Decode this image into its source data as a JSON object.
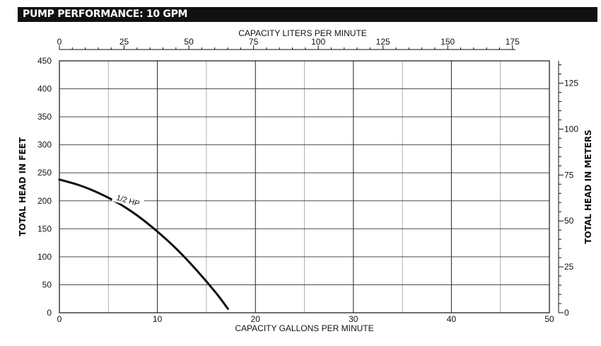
{
  "title": "PUMP PERFORMANCE: 10 GPM",
  "chart_data": {
    "type": "line",
    "xlabel": "CAPACITY GALLONS PER MINUTE",
    "ylabel": "TOTAL HEAD IN FEET",
    "x2label": "CAPACITY LITERS PER MINUTE",
    "y2label": "TOTAL HEAD IN METERS",
    "xlim": [
      0,
      50
    ],
    "ylim": [
      0,
      450
    ],
    "x2lim": [
      0,
      189.27
    ],
    "y2lim": [
      0,
      137.16
    ],
    "x_ticks": [
      "0",
      "10",
      "20",
      "30",
      "40",
      "50"
    ],
    "y_ticks": [
      "0",
      "50",
      "100",
      "150",
      "200",
      "250",
      "300",
      "350",
      "400",
      "450"
    ],
    "x2_ticks": [
      "0",
      "25",
      "50",
      "75",
      "100",
      "125",
      "150",
      "175"
    ],
    "y2_ticks": [
      "0",
      "25",
      "50",
      "75",
      "100",
      "125"
    ],
    "grid": true,
    "series": [
      {
        "name": "1/2 HP",
        "x": [
          0,
          2,
          4,
          6,
          8,
          10,
          12,
          14,
          16,
          17.2
        ],
        "y": [
          238,
          228,
          214,
          196,
          173,
          145,
          113,
          76,
          35,
          7
        ]
      }
    ]
  }
}
